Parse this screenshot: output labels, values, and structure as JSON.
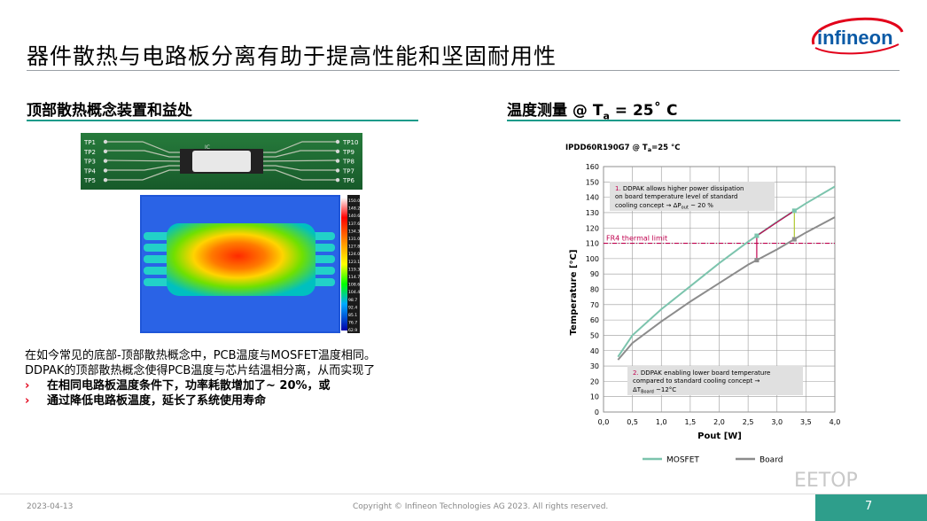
{
  "title": "器件散热与电路板分离有助于提高性能和坚固耐用性",
  "logo_text": "infineon",
  "left": {
    "heading": "顶部散热概念装置和益处",
    "board_ic": "IC",
    "board_pins_left": [
      "TP1",
      "TP2",
      "TP3",
      "TP4",
      "TP5"
    ],
    "board_pins_right": [
      "TP10",
      "TP9",
      "TP8",
      "TP7",
      "TP6"
    ],
    "thermal_scale": [
      "150.0",
      "148.2",
      "140.6",
      "137.6",
      "134.3",
      "131.0",
      "127.8",
      "124.0",
      "123.1",
      "119.3",
      "114.7",
      "108.6",
      "104.4",
      "98.7",
      "92.4",
      "85.1",
      "76.7",
      "62.9"
    ],
    "para1": "在如今常见的底部-顶部散热概念中，PCB温度与MOSFET温度相同。",
    "para2": "DDPAK的顶部散热概念使得PCB温度与芯片结温相分离，从而实现了",
    "bullet_marker": "›",
    "bullets": [
      "在相同电路板温度条件下，功率耗散增加了~ 20%，或",
      "通过降低电路板温度，延长了系统使用寿命"
    ]
  },
  "right": {
    "heading_pre": "温度测量 @ T",
    "heading_sub": "a",
    "heading_post": " = 25˚ C"
  },
  "chart_data": {
    "type": "line",
    "title": "IPDD60R190G7 @ T",
    "title_sub": "a",
    "title_post": "=25 °C",
    "xlabel": "Pout [W]",
    "ylabel": "Temperature [°C]",
    "xlim": [
      0,
      4
    ],
    "ylim": [
      0,
      160
    ],
    "xticks": [
      "0,0",
      "0,5",
      "1,0",
      "1,5",
      "2,0",
      "2,5",
      "3,0",
      "3,5",
      "4,0"
    ],
    "yticks": [
      "0",
      "10",
      "20",
      "30",
      "40",
      "50",
      "60",
      "70",
      "80",
      "90",
      "100",
      "110",
      "120",
      "130",
      "140",
      "150",
      "160"
    ],
    "grid": true,
    "legend_position": "bottom",
    "series": [
      {
        "name": "MOSFET",
        "color": "#7cc4ad",
        "x": [
          0.25,
          0.5,
          1.0,
          1.5,
          2.0,
          2.5,
          3.0,
          3.5,
          4.0
        ],
        "y": [
          36,
          50,
          67,
          82,
          97,
          111,
          124,
          136,
          147
        ]
      },
      {
        "name": "Board",
        "color": "#8c8c8c",
        "x": [
          0.25,
          0.5,
          1.0,
          1.5,
          2.0,
          2.5,
          3.0,
          3.5,
          4.0
        ],
        "y": [
          34,
          45,
          59,
          72,
          84,
          96,
          106,
          117,
          127
        ]
      }
    ],
    "threshold": {
      "label": "FR4 thermal limit",
      "value": 110,
      "color": "#c0004e"
    },
    "annotation1": {
      "num": "1.",
      "line1": " DDPAK allows higher power dissipation",
      "line2": "on board temperature level of standard",
      "line3_pre": "cooling concept → ΔP",
      "line3_sub": "out",
      "line3_post": " ~ 20 %"
    },
    "annotation2": {
      "num": "2.",
      "line1": " DDPAK enabling lower board temperature",
      "line2": "compared to standard cooling concept →",
      "line3_pre": "ΔT",
      "line3_sub": "Board",
      "line3_post": " ~12°C"
    }
  },
  "footer": {
    "date": "2023-04-13",
    "copyright": "Copyright © Infineon Technologies AG 2023. All rights reserved.",
    "page": "7"
  },
  "watermark": "EETOP"
}
